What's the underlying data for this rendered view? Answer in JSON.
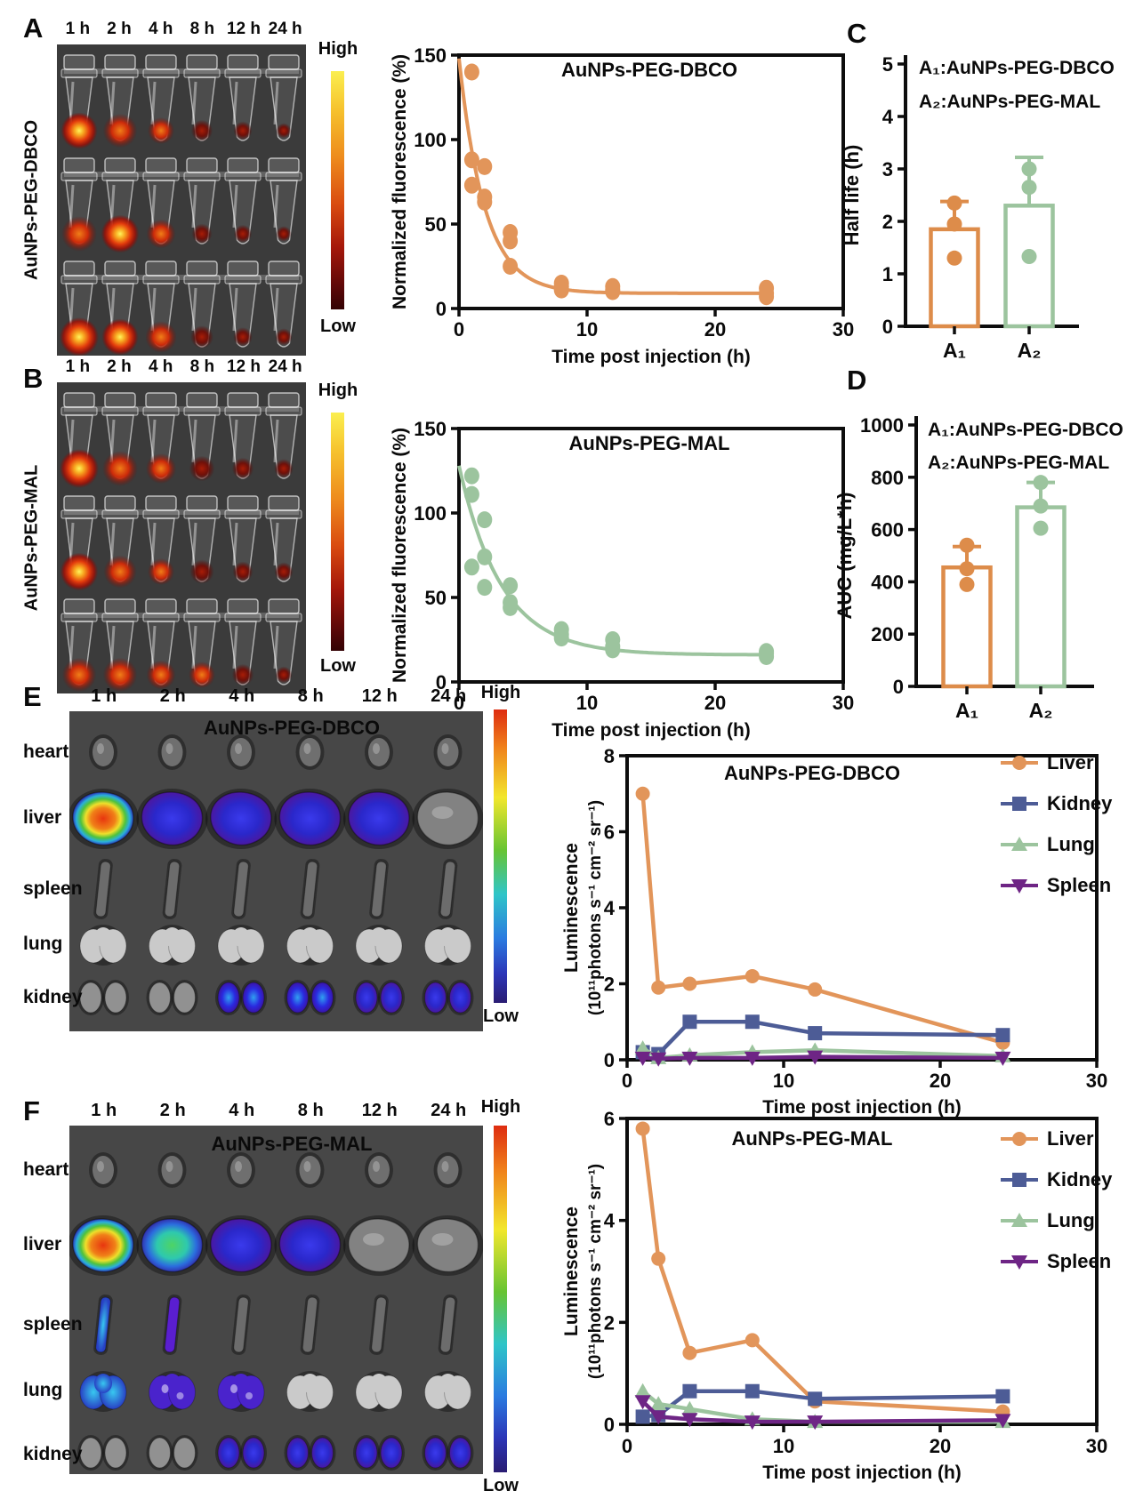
{
  "panels": {
    "a": {
      "letter": "A",
      "sample_label": "AuNPs-PEG-DBCO",
      "time_labels": [
        "1 h",
        "2 h",
        "4 h",
        "8 h",
        "12 h",
        "24 h"
      ],
      "colorbar_high": "High",
      "colorbar_low": "Low"
    },
    "b": {
      "letter": "B",
      "sample_label": "AuNPs-PEG-MAL",
      "time_labels": [
        "1 h",
        "2 h",
        "4 h",
        "8 h",
        "12 h",
        "24 h"
      ],
      "colorbar_high": "High",
      "colorbar_low": "Low"
    },
    "c": {
      "letter": "C"
    },
    "d": {
      "letter": "D"
    },
    "e": {
      "letter": "E",
      "image_title": "AuNPs-PEG-DBCO",
      "organ_labels": [
        "heart",
        "liver",
        "spleen",
        "lung",
        "kidney"
      ],
      "time_labels": [
        "1 h",
        "2 h",
        "4 h",
        "8 h",
        "12 h",
        "24 h"
      ],
      "colorbar_high": "High",
      "colorbar_low": "Low"
    },
    "f": {
      "letter": "F",
      "image_title": "AuNPs-PEG-MAL",
      "organ_labels": [
        "heart",
        "liver",
        "spleen",
        "lung",
        "kidney"
      ],
      "time_labels": [
        "1 h",
        "2 h",
        "4 h",
        "8 h",
        "12 h",
        "24 h"
      ],
      "colorbar_high": "High",
      "colorbar_low": "Low"
    }
  },
  "chart_data": [
    {
      "id": "chart-a",
      "type": "scatter",
      "panel": "A",
      "title": "AuNPs-PEG-DBCO",
      "color": "#E2955A",
      "xlabel": "Time post injection (h)",
      "ylabel": "Normalized fluorescence (%)",
      "xlim": [
        0,
        30
      ],
      "ylim": [
        0,
        150
      ],
      "xticks": [
        0,
        10,
        20,
        30
      ],
      "yticks": [
        0,
        50,
        100,
        150
      ],
      "x": [
        1,
        2,
        4,
        8,
        12,
        24
      ],
      "replicates": [
        [
          140,
          88,
          73
        ],
        [
          84,
          66,
          63
        ],
        [
          45,
          40,
          25
        ],
        [
          15,
          13,
          11
        ],
        [
          13,
          11,
          10
        ],
        [
          12,
          9,
          7
        ]
      ],
      "curve": {
        "y0": 148,
        "plateau": 9,
        "k": 0.5
      }
    },
    {
      "id": "chart-b",
      "type": "scatter",
      "panel": "B",
      "title": "AuNPs-PEG-MAL",
      "color": "#9CC49E",
      "xlabel": "Time post injection (h)",
      "ylabel": "Normalized fluorescence (%)",
      "xlim": [
        0,
        30
      ],
      "ylim": [
        0,
        150
      ],
      "xticks": [
        0,
        10,
        20,
        30
      ],
      "yticks": [
        0,
        50,
        100,
        150
      ],
      "x": [
        1,
        2,
        4,
        8,
        12,
        24
      ],
      "replicates": [
        [
          122,
          111,
          68
        ],
        [
          96,
          74,
          56
        ],
        [
          57,
          47,
          44
        ],
        [
          31,
          28,
          26
        ],
        [
          25,
          21,
          19
        ],
        [
          18,
          17,
          15
        ]
      ],
      "curve": {
        "y0": 128,
        "plateau": 16,
        "k": 0.3
      }
    },
    {
      "id": "chart-c",
      "type": "bar",
      "panel": "C",
      "ylabel": "Half life (h)",
      "ylim": [
        0,
        5
      ],
      "yticks": [
        0,
        1,
        2,
        3,
        4,
        5
      ],
      "categories": [
        "A₁",
        "A₂"
      ],
      "values": [
        1.85,
        2.3
      ],
      "error_top": [
        2.38,
        3.22
      ],
      "points": [
        [
          1.3,
          1.95,
          2.35
        ],
        [
          1.33,
          2.65,
          3.0
        ]
      ],
      "colors": [
        "#DD8C4A",
        "#9CC49E"
      ],
      "legend": [
        "A₁:AuNPs-PEG-DBCO",
        "A₂:AuNPs-PEG-MAL"
      ]
    },
    {
      "id": "chart-d",
      "type": "bar",
      "panel": "D",
      "ylabel": "AUC (mg/L*h)",
      "ylim": [
        0,
        1000
      ],
      "yticks": [
        0,
        200,
        400,
        600,
        800,
        1000
      ],
      "categories": [
        "A₁",
        "A₂"
      ],
      "values": [
        455,
        685
      ],
      "error_top": [
        535,
        780
      ],
      "points": [
        [
          390,
          450,
          540
        ],
        [
          605,
          690,
          780
        ]
      ],
      "colors": [
        "#DD8C4A",
        "#9CC49E"
      ],
      "legend": [
        "A₁:AuNPs-PEG-DBCO",
        "A₂:AuNPs-PEG-MAL"
      ]
    },
    {
      "id": "chart-e",
      "type": "line",
      "panel": "E",
      "title": "AuNPs-PEG-DBCO",
      "xlabel": "Time post injection (h)",
      "ylabel_lines": [
        "Luminescence",
        "(10¹¹photons s⁻¹ cm⁻² sr⁻¹)"
      ],
      "xlim": [
        0,
        30
      ],
      "ylim": [
        0,
        8
      ],
      "xticks": [
        0,
        10,
        20,
        30
      ],
      "yticks": [
        0,
        2,
        4,
        6,
        8
      ],
      "x": [
        1,
        2,
        4,
        8,
        12,
        24
      ],
      "legend_position": "inside-right",
      "series": [
        {
          "name": "Liver",
          "marker": "circle",
          "color": "#E2955A",
          "values": [
            7.0,
            1.9,
            2.0,
            2.2,
            1.85,
            0.45
          ]
        },
        {
          "name": "Kidney",
          "marker": "square",
          "color": "#4D5C96",
          "values": [
            0.2,
            0.15,
            1.0,
            1.0,
            0.7,
            0.65
          ]
        },
        {
          "name": "Lung",
          "marker": "triangle-up",
          "color": "#9CC49E",
          "values": [
            0.3,
            0.05,
            0.12,
            0.2,
            0.25,
            0.1
          ]
        },
        {
          "name": "Spleen",
          "marker": "triangle-down",
          "color": "#6E2585",
          "values": [
            0.05,
            0.03,
            0.05,
            0.05,
            0.08,
            0.05
          ]
        }
      ]
    },
    {
      "id": "chart-f",
      "type": "line",
      "panel": "F",
      "title": "AuNPs-PEG-MAL",
      "xlabel": "Time post injection (h)",
      "ylabel_lines": [
        "Luminescence",
        "(10¹¹photons s⁻¹ cm⁻² sr⁻¹)"
      ],
      "xlim": [
        0,
        30
      ],
      "ylim": [
        0,
        6
      ],
      "xticks": [
        0,
        10,
        20,
        30
      ],
      "yticks": [
        0,
        2,
        4,
        6
      ],
      "x": [
        1,
        2,
        4,
        8,
        12,
        24
      ],
      "legend_position": "inside-right",
      "series": [
        {
          "name": "Liver",
          "marker": "circle",
          "color": "#E2955A",
          "values": [
            5.8,
            3.25,
            1.4,
            1.65,
            0.45,
            0.25
          ]
        },
        {
          "name": "Kidney",
          "marker": "square",
          "color": "#4D5C96",
          "values": [
            0.15,
            0.18,
            0.65,
            0.65,
            0.5,
            0.55
          ]
        },
        {
          "name": "Lung",
          "marker": "triangle-up",
          "color": "#9CC49E",
          "values": [
            0.65,
            0.4,
            0.3,
            0.1,
            0.05,
            0.05
          ]
        },
        {
          "name": "Spleen",
          "marker": "triangle-down",
          "color": "#6E2585",
          "values": [
            0.45,
            0.15,
            0.1,
            0.05,
            0.05,
            0.08
          ]
        }
      ]
    }
  ],
  "image_data": {
    "tubes_a": {
      "rows": [
        [
          0.9,
          0.8,
          0.5,
          0.3,
          0.18,
          0.04
        ],
        [
          0.85,
          0.95,
          0.6,
          0.25,
          0.15,
          0.05
        ],
        [
          1.0,
          0.9,
          0.7,
          0.35,
          0.2,
          0.12
        ]
      ]
    },
    "tubes_b": {
      "rows": [
        [
          1.0,
          0.85,
          0.65,
          0.45,
          0.3,
          0.2
        ],
        [
          0.95,
          0.75,
          0.5,
          0.4,
          0.25,
          0.18
        ],
        [
          0.8,
          0.8,
          0.6,
          0.5,
          0.3,
          0.1
        ]
      ]
    },
    "organs_e": {
      "heart": [
        "gray",
        "gray",
        "gray",
        "gray",
        "gray",
        "gray"
      ],
      "liver": [
        "hot",
        "blue",
        "blue",
        "blue",
        "blue",
        "gray"
      ],
      "spleen": [
        "gray",
        "gray",
        "gray",
        "gray",
        "gray",
        "gray"
      ],
      "lung": [
        "white",
        "white",
        "white",
        "white",
        "white",
        "white"
      ],
      "kidney": [
        "gray",
        "gray",
        "cyanblue",
        "cyanblue",
        "blue",
        "blue"
      ]
    },
    "organs_f": {
      "heart": [
        "gray",
        "gray",
        "gray",
        "gray",
        "gray",
        "gray"
      ],
      "liver": [
        "hot",
        "green",
        "blue",
        "blue",
        "gray",
        "gray"
      ],
      "spleen": [
        "cyan",
        "purple",
        "gray",
        "gray",
        "gray",
        "gray"
      ],
      "lung": [
        "cyan",
        "purpleblue",
        "purpleblue",
        "white",
        "white",
        "white"
      ],
      "kidney": [
        "gray",
        "gray",
        "blue",
        "blue",
        "blue",
        "blue"
      ]
    }
  }
}
